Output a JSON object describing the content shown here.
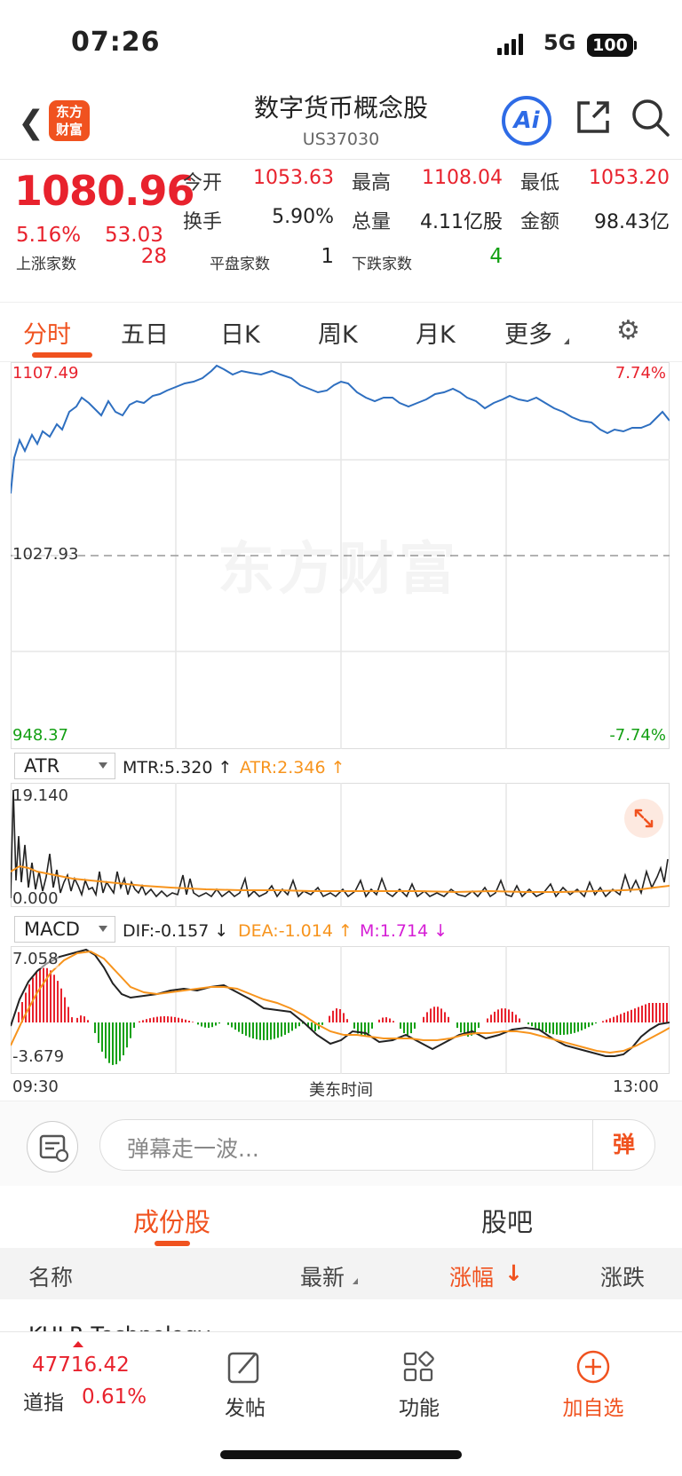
{
  "status": {
    "time": "07:26",
    "network": "5G",
    "battery": "100"
  },
  "nav": {
    "title": "数字货币概念股",
    "code": "US37030",
    "logo_text": "东方财富",
    "ai_label": "Ai"
  },
  "quote": {
    "price": "1080.96",
    "change_pct": "5.16%",
    "change": "53.03",
    "open_label": "今开",
    "open": "1053.63",
    "high_label": "最高",
    "high": "1108.04",
    "low_label": "最低",
    "low": "1053.20",
    "turnover_label": "换手",
    "turnover": "5.90%",
    "volume_label": "总量",
    "volume": "4.11亿股",
    "amount_label": "金额",
    "amount": "98.43亿",
    "up_label": "上涨家数",
    "up": "28",
    "flat_label": "平盘家数",
    "flat": "1",
    "down_label": "下跌家数",
    "down": "4"
  },
  "tabs": [
    "分时",
    "五日",
    "日K",
    "周K",
    "月K",
    "更多"
  ],
  "chart": {
    "y_top": "1107.49",
    "y_mid": "1027.93",
    "y_bottom": "948.37",
    "pct_top": "7.74%",
    "pct_bottom": "-7.74%",
    "watermark": "东方财富",
    "x_start": "09:30",
    "x_mid": "美东时间",
    "x_end": "13:00",
    "colors": {
      "price": "#2e6fc0",
      "up": "#e8222d",
      "down": "#14a014",
      "avg": "#f7941d"
    }
  },
  "atr": {
    "selector": "ATR",
    "mtr": "MTR:5.320 ↑",
    "atr": "ATR:2.346 ↑",
    "y_top": "19.140",
    "y_bottom": "0.000"
  },
  "macd": {
    "selector": "MACD",
    "dif": "DIF:-0.157 ↓",
    "dea": "DEA:-1.014 ↑",
    "m": "M:1.714 ↓",
    "y_top": "7.058",
    "y_bottom": "-3.679"
  },
  "comment": {
    "placeholder": "弹幕走一波...",
    "danmu": "弹"
  },
  "segments": [
    "成份股",
    "股吧"
  ],
  "table": {
    "headers": [
      "名称",
      "最新",
      "涨幅",
      "涨跌"
    ],
    "peek_name": "KULR Technology"
  },
  "bottom": {
    "index_value": "47716.42",
    "index_name": "道指",
    "index_pct": "0.61%",
    "post": "发帖",
    "functions": "功能",
    "watchlist": "加自选"
  }
}
